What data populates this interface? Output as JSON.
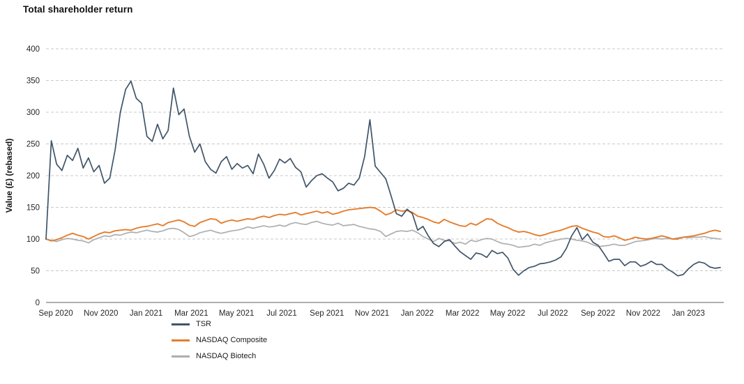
{
  "chart_data": {
    "type": "line",
    "title": "Total shareholder return",
    "xlabel": "",
    "ylabel": "Value (£) (rebased)",
    "ylim": [
      0,
      400
    ],
    "y_ticks": [
      0,
      50,
      100,
      150,
      200,
      250,
      300,
      350,
      400
    ],
    "x_ticks": [
      "Sep 2020",
      "Nov 2020",
      "Jan 2021",
      "Mar 2021",
      "May 2021",
      "Jul 2021",
      "Sep 2021",
      "Nov 2021",
      "Jan 2022",
      "Mar 2022",
      "May 2022",
      "Jul 2022",
      "Sep 2022",
      "Nov 2022",
      "Jan 2023"
    ],
    "x_unit": "weekly points, Sep 2020 to Feb 2023",
    "grid": "horizontal dashed gridlines, solid zero axis line",
    "legend_position": "below chart, left-of-center, vertical stack",
    "axis_color": "#7f7f7f",
    "gridline_color": "#c9c9c9",
    "tick_label_color": "#262626",
    "series": [
      {
        "name": "TSR",
        "color": "#3f5468",
        "values": [
          100,
          255,
          218,
          208,
          232,
          224,
          243,
          212,
          228,
          206,
          216,
          188,
          196,
          240,
          300,
          336,
          349,
          322,
          314,
          262,
          254,
          281,
          258,
          271,
          338,
          296,
          305,
          262,
          237,
          250,
          222,
          210,
          204,
          222,
          230,
          210,
          219,
          212,
          216,
          203,
          234,
          218,
          196,
          208,
          226,
          220,
          227,
          213,
          206,
          182,
          192,
          200,
          203,
          196,
          190,
          176,
          180,
          188,
          185,
          196,
          230,
          288,
          215,
          205,
          195,
          168,
          140,
          136,
          147,
          140,
          114,
          120,
          105,
          93,
          88,
          96,
          99,
          89,
          80,
          74,
          68,
          78,
          76,
          71,
          82,
          77,
          79,
          70,
          52,
          43,
          50,
          55,
          57,
          61,
          62,
          64,
          67,
          72,
          85,
          105,
          118,
          99,
          108,
          95,
          90,
          78,
          65,
          68,
          68,
          58,
          64,
          64,
          57,
          60,
          65,
          60,
          60,
          53,
          48,
          42,
          44,
          53,
          60,
          64,
          62,
          56,
          54,
          55
        ]
      },
      {
        "name": "NASDAQ Composite",
        "color": "#e57d2d",
        "values": [
          100,
          97,
          99,
          102,
          106,
          109,
          106,
          104,
          100,
          104,
          108,
          111,
          110,
          113,
          114,
          115,
          114,
          117,
          119,
          120,
          122,
          124,
          121,
          126,
          128,
          130,
          127,
          122,
          120,
          126,
          129,
          132,
          131,
          125,
          128,
          130,
          128,
          130,
          132,
          131,
          134,
          136,
          134,
          137,
          139,
          138,
          140,
          142,
          138,
          140,
          142,
          144,
          141,
          143,
          139,
          141,
          144,
          146,
          147,
          148,
          149,
          150,
          149,
          144,
          138,
          141,
          146,
          144,
          145,
          142,
          136,
          134,
          131,
          127,
          125,
          131,
          127,
          124,
          121,
          120,
          125,
          122,
          127,
          132,
          131,
          125,
          121,
          118,
          114,
          111,
          112,
          110,
          107,
          105,
          107,
          110,
          112,
          114,
          117,
          120,
          121,
          117,
          114,
          111,
          109,
          104,
          103,
          105,
          102,
          98,
          100,
          103,
          101,
          100,
          101,
          103,
          105,
          103,
          100,
          100,
          103,
          104,
          105,
          107,
          109,
          112,
          114,
          112
        ]
      },
      {
        "name": "NASDAQ Biotech",
        "color": "#acaeb0",
        "values": [
          100,
          98,
          96,
          99,
          101,
          100,
          98,
          97,
          94,
          99,
          102,
          105,
          104,
          107,
          106,
          109,
          111,
          110,
          112,
          114,
          112,
          111,
          113,
          116,
          117,
          115,
          110,
          104,
          106,
          110,
          112,
          114,
          111,
          109,
          111,
          113,
          114,
          116,
          119,
          117,
          119,
          121,
          119,
          120,
          122,
          120,
          124,
          126,
          124,
          123,
          126,
          128,
          125,
          123,
          122,
          125,
          121,
          122,
          123,
          120,
          118,
          116,
          115,
          112,
          104,
          108,
          112,
          113,
          112,
          114,
          110,
          104,
          100,
          96,
          101,
          98,
          97,
          93,
          95,
          92,
          98,
          96,
          99,
          101,
          100,
          96,
          93,
          92,
          90,
          87,
          88,
          89,
          92,
          90,
          94,
          96,
          98,
          100,
          101,
          100,
          98,
          97,
          95,
          91,
          88,
          89,
          90,
          92,
          90,
          90,
          93,
          96,
          97,
          98,
          100,
          101,
          100,
          101,
          100,
          102,
          103,
          102,
          103,
          103,
          104,
          102,
          101,
          100
        ]
      }
    ]
  }
}
